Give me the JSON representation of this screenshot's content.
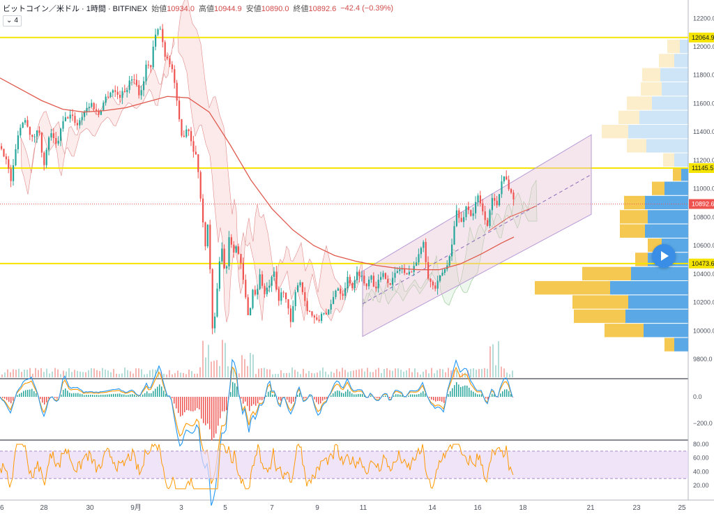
{
  "header": {
    "symbol": "ビットコイン／米ドル · 1時間 · BITFINEX",
    "open_label": "始値",
    "open": "10934.0",
    "high_label": "高値",
    "high": "10944.9",
    "low_label": "安値",
    "low": "10890.0",
    "close_label": "終値",
    "close": "10892.6",
    "change": "−42.4 (−0.39%)",
    "indicator_count": "4"
  },
  "colors": {
    "up": "#26a69a",
    "down": "#ef5350",
    "level": "#f5e400",
    "ma": "#e05a4e",
    "channel": "#b79ad6",
    "macd": "#2196f3",
    "signal": "#ff9800",
    "rsi": "#ff9800",
    "rsi_band": "#e9d8f7",
    "vp_up": "#5aa9e6",
    "vp_down": "#f5c851"
  },
  "chart_data": [
    {
      "type": "line",
      "title": "ビットコイン／米ドル · 1時間 · BITFINEX",
      "y_ticks": [
        "12200.0",
        "12000.0",
        "11800.0",
        "11600.0",
        "11400.0",
        "11200.0",
        "11000.0",
        "10800.0",
        "10600.0",
        "10400.0",
        "10200.0",
        "10000.0",
        "9800.0"
      ],
      "ylim": [
        9700,
        12270
      ],
      "x_ticks": [
        "26",
        "28",
        "30",
        "9月",
        "3",
        "5",
        "7",
        "9",
        "11",
        "14",
        "16",
        "18",
        "21",
        "23",
        "25"
      ],
      "price_labels": [
        {
          "value": 12064.9,
          "label": "12064.9",
          "kind": "level"
        },
        {
          "value": 11145.5,
          "label": "11145.5",
          "kind": "level"
        },
        {
          "value": 10473.6,
          "label": "10473.6",
          "kind": "level"
        },
        {
          "value": 10892.6,
          "label": "10892.6",
          "kind": "last"
        }
      ],
      "price_path": [
        [
          0,
          11300
        ],
        [
          8,
          11200
        ],
        [
          15,
          11050
        ],
        [
          25,
          11400
        ],
        [
          35,
          11500
        ],
        [
          45,
          11350
        ],
        [
          55,
          11420
        ],
        [
          62,
          11150
        ],
        [
          70,
          11400
        ],
        [
          80,
          11300
        ],
        [
          90,
          11480
        ],
        [
          100,
          11520
        ],
        [
          110,
          11450
        ],
        [
          120,
          11550
        ],
        [
          130,
          11600
        ],
        [
          140,
          11520
        ],
        [
          150,
          11640
        ],
        [
          160,
          11700
        ],
        [
          170,
          11650
        ],
        [
          180,
          11700
        ],
        [
          190,
          11800
        ],
        [
          200,
          11650
        ],
        [
          210,
          11900
        ],
        [
          215,
          11850
        ],
        [
          220,
          12050
        ],
        [
          228,
          12150
        ],
        [
          235,
          11950
        ],
        [
          242,
          11900
        ],
        [
          248,
          11800
        ],
        [
          255,
          11500
        ],
        [
          260,
          11350
        ],
        [
          268,
          11450
        ],
        [
          275,
          11300
        ],
        [
          282,
          11200
        ],
        [
          288,
          10850
        ],
        [
          293,
          10600
        ],
        [
          298,
          10780
        ],
        [
          303,
          10000
        ],
        [
          308,
          10100
        ],
        [
          312,
          10450
        ],
        [
          318,
          10600
        ],
        [
          322,
          10350
        ],
        [
          328,
          10700
        ],
        [
          333,
          10560
        ],
        [
          338,
          10600
        ],
        [
          345,
          10450
        ],
        [
          352,
          10200
        ],
        [
          356,
          10050
        ],
        [
          360,
          10300
        ],
        [
          366,
          10250
        ],
        [
          372,
          10400
        ],
        [
          378,
          10250
        ],
        [
          385,
          10320
        ],
        [
          392,
          10400
        ],
        [
          398,
          10200
        ],
        [
          405,
          10300
        ],
        [
          410,
          10200
        ],
        [
          416,
          10050
        ],
        [
          422,
          10250
        ],
        [
          428,
          10380
        ],
        [
          434,
          10250
        ],
        [
          440,
          10150
        ],
        [
          448,
          10100
        ],
        [
          455,
          10050
        ],
        [
          462,
          10150
        ],
        [
          468,
          10100
        ],
        [
          475,
          10200
        ],
        [
          482,
          10320
        ],
        [
          490,
          10250
        ],
        [
          498,
          10380
        ],
        [
          505,
          10300
        ],
        [
          512,
          10420
        ],
        [
          518,
          10380
        ],
        [
          524,
          10300
        ],
        [
          530,
          10420
        ],
        [
          536,
          10300
        ],
        [
          542,
          10350
        ],
        [
          550,
          10400
        ],
        [
          558,
          10330
        ],
        [
          566,
          10400
        ],
        [
          574,
          10450
        ],
        [
          582,
          10380
        ],
        [
          590,
          10440
        ],
        [
          598,
          10500
        ],
        [
          606,
          10650
        ],
        [
          612,
          10400
        ],
        [
          618,
          10320
        ],
        [
          624,
          10300
        ],
        [
          632,
          10400
        ],
        [
          640,
          10450
        ],
        [
          648,
          10650
        ],
        [
          654,
          10850
        ],
        [
          660,
          10750
        ],
        [
          668,
          10880
        ],
        [
          676,
          10800
        ],
        [
          684,
          10950
        ],
        [
          690,
          10850
        ],
        [
          698,
          10750
        ],
        [
          706,
          10950
        ],
        [
          712,
          10900
        ],
        [
          718,
          11050
        ],
        [
          724,
          11100
        ],
        [
          730,
          10980
        ],
        [
          737,
          10892
        ]
      ],
      "ma_path": [
        [
          0,
          11780
        ],
        [
          30,
          11700
        ],
        [
          60,
          11620
        ],
        [
          90,
          11560
        ],
        [
          120,
          11540
        ],
        [
          150,
          11550
        ],
        [
          180,
          11570
        ],
        [
          210,
          11610
        ],
        [
          240,
          11650
        ],
        [
          270,
          11640
        ],
        [
          300,
          11540
        ],
        [
          330,
          11310
        ],
        [
          360,
          11060
        ],
        [
          390,
          10860
        ],
        [
          420,
          10710
        ],
        [
          450,
          10600
        ],
        [
          480,
          10530
        ],
        [
          510,
          10490
        ],
        [
          540,
          10460
        ],
        [
          570,
          10440
        ],
        [
          600,
          10430
        ],
        [
          630,
          10430
        ],
        [
          660,
          10470
        ],
        [
          690,
          10540
        ],
        [
          720,
          10620
        ],
        [
          737,
          10660
        ]
      ],
      "channel": {
        "start": [
          520,
          10420,
          9960
        ],
        "end": [
          848,
          11380,
          10820
        ]
      },
      "volume_bars": 70
    },
    {
      "type": "line",
      "title": "",
      "y_ticks": [
        "0.0",
        "−200.0"
      ],
      "series": [
        {
          "values": "macd"
        },
        {
          "values": "signal"
        }
      ]
    },
    {
      "type": "line",
      "title": "",
      "y_ticks": [
        "80.00",
        "60.00",
        "40.00",
        "20.00"
      ],
      "band": [
        30,
        70
      ]
    }
  ],
  "volume_profile": [
    {
      "price": 12000,
      "up": 18,
      "down": 12
    },
    {
      "price": 11900,
      "up": 22,
      "down": 20
    },
    {
      "price": 11800,
      "up": 26,
      "down": 40
    },
    {
      "price": 11700,
      "up": 30,
      "down": 38
    },
    {
      "price": 11600,
      "up": 36,
      "down": 52
    },
    {
      "price": 11500,
      "up": 30,
      "down": 70
    },
    {
      "price": 11400,
      "up": 38,
      "down": 86
    },
    {
      "price": 11300,
      "up": 28,
      "down": 60
    },
    {
      "price": 11200,
      "up": 16,
      "down": 20
    },
    {
      "price": 11100,
      "up": 12,
      "down": 10
    },
    {
      "price": 11000,
      "up": 18,
      "down": 34
    },
    {
      "price": 10900,
      "up": 30,
      "down": 62
    },
    {
      "price": 10800,
      "up": 40,
      "down": 58
    },
    {
      "price": 10700,
      "up": 36,
      "down": 62
    },
    {
      "price": 10600,
      "up": 20,
      "down": 38
    },
    {
      "price": 10500,
      "up": 18,
      "down": 58
    },
    {
      "price": 10400,
      "up": 70,
      "down": 82
    },
    {
      "price": 10300,
      "up": 108,
      "down": 112
    },
    {
      "price": 10200,
      "up": 80,
      "down": 86
    },
    {
      "price": 10100,
      "up": 74,
      "down": 90
    },
    {
      "price": 10000,
      "up": 56,
      "down": 64
    },
    {
      "price": 9900,
      "up": 14,
      "down": 20
    }
  ]
}
